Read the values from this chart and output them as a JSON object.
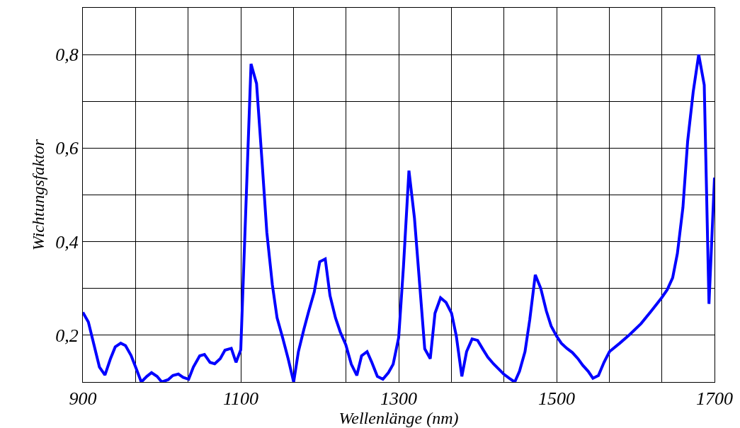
{
  "chart_data": {
    "type": "line",
    "xlabel": "Wellenlänge (nm)",
    "ylabel": "Wichtungsfaktor",
    "x": [
      900,
      907,
      914,
      921,
      928,
      935,
      941,
      948,
      954,
      961,
      968,
      974,
      981,
      987,
      994,
      1000,
      1008,
      1014,
      1021,
      1027,
      1034,
      1040,
      1048,
      1054,
      1061,
      1067,
      1074,
      1080,
      1088,
      1094,
      1100,
      1113,
      1120,
      1127,
      1133,
      1140,
      1146,
      1153,
      1160,
      1167,
      1173,
      1180,
      1186,
      1193,
      1200,
      1207,
      1213,
      1220,
      1226,
      1233,
      1240,
      1247,
      1253,
      1260,
      1266,
      1273,
      1280,
      1287,
      1293,
      1300,
      1306,
      1313,
      1320,
      1327,
      1333,
      1340,
      1346,
      1353,
      1360,
      1367,
      1373,
      1380,
      1386,
      1393,
      1400,
      1407,
      1413,
      1420,
      1426,
      1433,
      1440,
      1447,
      1453,
      1460,
      1466,
      1473,
      1480,
      1487,
      1493,
      1500,
      1506,
      1513,
      1520,
      1527,
      1533,
      1540,
      1546,
      1553,
      1560,
      1567,
      1580,
      1593,
      1607,
      1620,
      1633,
      1640,
      1647,
      1653,
      1660,
      1666,
      1673,
      1680,
      1687,
      1693,
      1700
    ],
    "series": [
      {
        "color": "#0000ff",
        "values": [
          0.249,
          0.228,
          0.18,
          0.132,
          0.115,
          0.15,
          0.175,
          0.183,
          0.178,
          0.157,
          0.127,
          0.1,
          0.112,
          0.12,
          0.112,
          0.1,
          0.105,
          0.114,
          0.117,
          0.11,
          0.106,
          0.132,
          0.156,
          0.159,
          0.142,
          0.139,
          0.15,
          0.168,
          0.172,
          0.142,
          0.169,
          0.78,
          0.738,
          0.57,
          0.42,
          0.308,
          0.237,
          0.195,
          0.15,
          0.1,
          0.165,
          0.213,
          0.251,
          0.292,
          0.357,
          0.363,
          0.285,
          0.237,
          0.207,
          0.18,
          0.138,
          0.114,
          0.156,
          0.165,
          0.142,
          0.112,
          0.106,
          0.12,
          0.138,
          0.195,
          0.345,
          0.552,
          0.45,
          0.3,
          0.171,
          0.15,
          0.247,
          0.28,
          0.27,
          0.247,
          0.198,
          0.112,
          0.165,
          0.192,
          0.189,
          0.169,
          0.153,
          0.139,
          0.129,
          0.117,
          0.108,
          0.1,
          0.123,
          0.165,
          0.233,
          0.329,
          0.3,
          0.252,
          0.22,
          0.198,
          0.183,
          0.172,
          0.163,
          0.15,
          0.136,
          0.123,
          0.108,
          0.114,
          0.142,
          0.165,
          0.183,
          0.202,
          0.225,
          0.252,
          0.28,
          0.297,
          0.323,
          0.375,
          0.473,
          0.615,
          0.72,
          0.8,
          0.735,
          0.267,
          0.537
        ]
      }
    ],
    "xlim": [
      900,
      1700
    ],
    "xticks": [
      900,
      {
        "value": 966.7,
        "label": null
      },
      {
        "value": 1033.3,
        "label": null
      },
      1100,
      {
        "value": 1166.7,
        "label": null
      },
      {
        "value": 1233.3,
        "label": null
      },
      1300,
      {
        "value": 1366.7,
        "label": null
      },
      {
        "value": 1433.3,
        "label": null
      },
      1500,
      {
        "value": 1566.7,
        "label": null
      },
      {
        "value": 1633.3,
        "label": null
      },
      1700
    ],
    "ylim": [
      0.1,
      0.9
    ],
    "yticks": [
      {
        "value": 0.1,
        "label": null
      },
      {
        "value": 0.2,
        "label": "0,2"
      },
      {
        "value": 0.3,
        "label": null
      },
      {
        "value": 0.4,
        "label": "0,4"
      },
      {
        "value": 0.5,
        "label": null
      },
      {
        "value": 0.6,
        "label": "0,6"
      },
      {
        "value": 0.7,
        "label": null
      },
      {
        "value": 0.8,
        "label": "0,8"
      },
      {
        "value": 0.9,
        "label": null
      }
    ],
    "grid": true,
    "marker": "none",
    "line_style": "solid"
  }
}
